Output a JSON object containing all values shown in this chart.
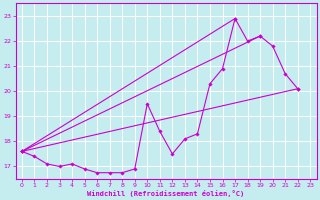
{
  "xlabel": "Windchill (Refroidissement éolien,°C)",
  "bg_color": "#c5ecee",
  "grid_color": "#ffffff",
  "line_color": "#cc00cc",
  "xlim": [
    -0.5,
    23.5
  ],
  "ylim": [
    16.5,
    23.5
  ],
  "yticks": [
    17,
    18,
    19,
    20,
    21,
    22,
    23
  ],
  "xticks": [
    0,
    1,
    2,
    3,
    4,
    5,
    6,
    7,
    8,
    9,
    10,
    11,
    12,
    13,
    14,
    15,
    16,
    17,
    18,
    19,
    20,
    21,
    22,
    23
  ],
  "main_x": [
    0,
    1,
    2,
    3,
    4,
    5,
    6,
    7,
    8,
    9,
    10,
    11,
    12,
    13,
    14,
    15,
    16,
    17,
    18,
    19,
    20,
    21,
    22
  ],
  "main_y": [
    17.6,
    17.4,
    17.1,
    17.0,
    17.1,
    16.9,
    16.75,
    16.75,
    16.75,
    16.9,
    19.5,
    18.4,
    17.5,
    18.1,
    18.3,
    20.3,
    20.9,
    22.9,
    22.0,
    22.2,
    21.8,
    20.7,
    20.1
  ],
  "line2_x": [
    0,
    22
  ],
  "line2_y": [
    17.6,
    20.1
  ],
  "line3_x": [
    0,
    19
  ],
  "line3_y": [
    17.6,
    22.2
  ],
  "line4_x": [
    0,
    17
  ],
  "line4_y": [
    17.6,
    22.9
  ]
}
